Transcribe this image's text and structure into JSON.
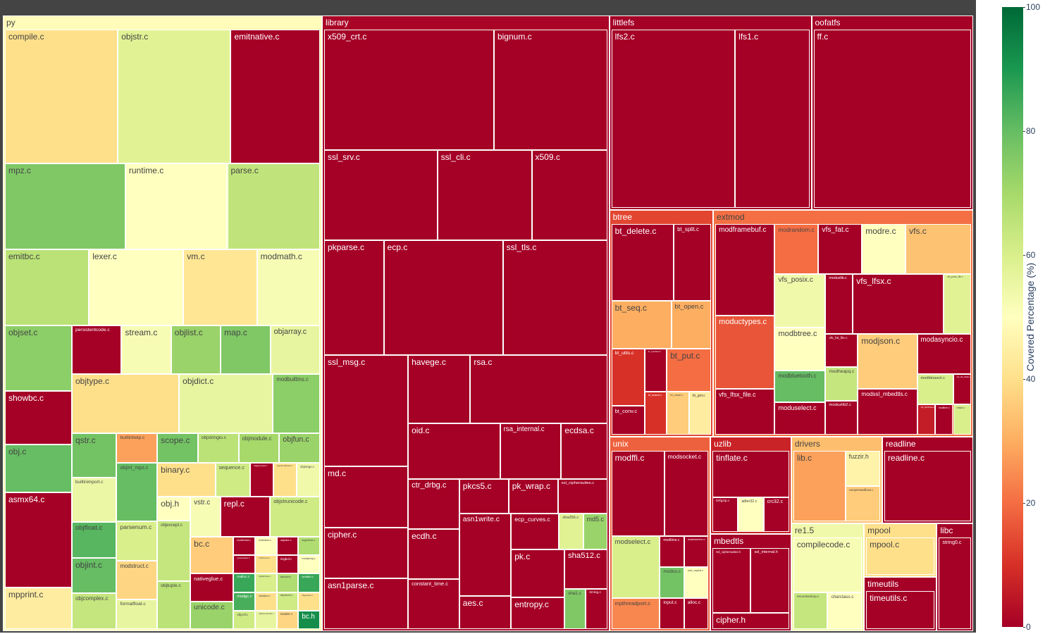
{
  "chart_data": {
    "type": "treemap",
    "colorbar": {
      "title": "Covered Percentage (%)",
      "range": [
        0,
        100
      ],
      "ticks": [
        0,
        20,
        40,
        60,
        80,
        100
      ],
      "colorscale": [
        "#a50026",
        "#d73027",
        "#f46d43",
        "#fdae61",
        "#fee08b",
        "#ffffbf",
        "#d9ef8b",
        "#a6d96a",
        "#66bd63",
        "#1a9850",
        "#006837"
      ]
    },
    "groups": [
      {
        "name": "py",
        "value": 50,
        "files": [
          {
            "name": "compile.c",
            "value": 38,
            "cov": 40
          },
          {
            "name": "objstr.c",
            "value": 38,
            "cov": 58
          },
          {
            "name": "emitnative.c",
            "value": 30,
            "cov": 0
          },
          {
            "name": "mpz.c",
            "value": 26,
            "cov": 76
          },
          {
            "name": "runtime.c",
            "value": 22,
            "cov": 50
          },
          {
            "name": "parse.c",
            "value": 20,
            "cov": 65
          },
          {
            "name": "emitbc.c",
            "value": 16,
            "cov": 66
          },
          {
            "name": "lexer.c",
            "value": 18,
            "cov": 50
          },
          {
            "name": "vm.c",
            "value": 14,
            "cov": 42
          },
          {
            "name": "modmath.c",
            "value": 12,
            "cov": 52
          },
          {
            "name": "objset.c",
            "value": 11,
            "cov": 74
          },
          {
            "name": "showbc.c",
            "value": 9,
            "cov": 0
          },
          {
            "name": "obj.c",
            "value": 8,
            "cov": 80
          },
          {
            "name": "asmx64.c",
            "value": 16,
            "cov": 0
          },
          {
            "name": "mpprint.c",
            "value": 7,
            "cov": 44
          },
          {
            "name": "persistentcode.c",
            "value": 6,
            "cov": 0
          },
          {
            "name": "stream.c",
            "value": 6,
            "cov": 52
          },
          {
            "name": "objlist.c",
            "value": 6,
            "cov": 72
          },
          {
            "name": "map.c",
            "value": 6,
            "cov": 76
          },
          {
            "name": "objarray.c",
            "value": 6,
            "cov": 56
          },
          {
            "name": "objtype.c",
            "value": 16,
            "cov": 40
          },
          {
            "name": "objdict.c",
            "value": 14,
            "cov": 56
          },
          {
            "name": "modbuiltins.c",
            "value": 7,
            "cov": 74
          },
          {
            "name": "qstr.c",
            "value": 5,
            "cov": 78
          },
          {
            "name": "builtinimport.c",
            "value": 5,
            "cov": 55
          },
          {
            "name": "objfloat.c",
            "value": 4,
            "cov": 82
          },
          {
            "name": "objint.c",
            "value": 4,
            "cov": 80
          },
          {
            "name": "objcomplex.c",
            "value": 4,
            "cov": 64
          },
          {
            "name": "builtinhelp.c",
            "value": 3,
            "cov": 28
          },
          {
            "name": "objint_mpz.c",
            "value": 6,
            "cov": 80
          },
          {
            "name": "parsenum.c",
            "value": 4,
            "cov": 60
          },
          {
            "name": "modstruct.c",
            "value": 4,
            "cov": 38
          },
          {
            "name": "formatfloat.c",
            "value": 3,
            "cov": 56
          },
          {
            "name": "scope.c",
            "value": 3,
            "cov": 78
          },
          {
            "name": "objstringio.c",
            "value": 3,
            "cov": 66
          },
          {
            "name": "objmodule.c",
            "value": 3,
            "cov": 70
          },
          {
            "name": "objfun.c",
            "value": 3,
            "cov": 72
          },
          {
            "name": "binary.c",
            "value": 5,
            "cov": 40
          },
          {
            "name": "sequence.c",
            "value": 3,
            "cov": 62
          },
          {
            "name": "objgenerator.c",
            "value": 2,
            "cov": 0
          },
          {
            "name": "objnamedtuple.c",
            "value": 2,
            "cov": 40
          },
          {
            "name": "objrange.c",
            "value": 2,
            "cov": 54
          },
          {
            "name": "obj.h",
            "value": 2,
            "cov": 50
          },
          {
            "name": "objexcept.c",
            "value": 5,
            "cov": 64
          },
          {
            "name": "objtuple.c",
            "value": 4,
            "cov": 66
          },
          {
            "name": "vstr.c",
            "value": 3,
            "cov": 52
          },
          {
            "name": "repl.c",
            "value": 5,
            "cov": 0
          },
          {
            "name": "objstrunicode.c",
            "value": 5,
            "cov": 62
          },
          {
            "name": "bc.c",
            "value": 4,
            "cov": 36
          },
          {
            "name": "nativeglue.c",
            "value": 3,
            "cov": 0
          },
          {
            "name": "unicode.c",
            "value": 3,
            "cov": 72
          },
          {
            "name": "modthread.c",
            "value": 1,
            "cov": 0
          },
          {
            "name": "scheduler.c",
            "value": 1,
            "cov": 50
          },
          {
            "name": "objslice.c",
            "value": 1,
            "cov": 0
          },
          {
            "name": "argcheck.c",
            "value": 1,
            "cov": 68
          },
          {
            "name": "parsehelper.c",
            "value": 1,
            "cov": 0
          },
          {
            "name": "malloc.c",
            "value": 1,
            "cov": 86
          },
          {
            "name": "modgc.c",
            "value": 1,
            "cov": 84
          },
          {
            "name": "objcell.c",
            "value": 1,
            "cov": 62
          },
          {
            "name": "builtinevex.c",
            "value": 1,
            "cov": 40
          },
          {
            "name": "ringbuf.c",
            "value": 1,
            "cov": 0
          },
          {
            "name": "modarray.c",
            "value": 1,
            "cov": 50
          },
          {
            "name": "objattrtuple.c",
            "value": 1,
            "cov": 60
          },
          {
            "name": "objobject.c",
            "value": 1,
            "cov": 40
          },
          {
            "name": "objboundmeth.c",
            "value": 1,
            "cov": 56
          },
          {
            "name": "stackctrl.c",
            "value": 1,
            "cov": 68
          },
          {
            "name": "smallint.c",
            "value": 1,
            "cov": 86
          },
          {
            "name": "objclosure.c",
            "value": 1,
            "cov": 62
          },
          {
            "name": "reader.c",
            "value": 1,
            "cov": 38
          },
          {
            "name": "objpolyiter.c",
            "value": 1,
            "cov": 40
          },
          {
            "name": "bc.h",
            "value": 1,
            "cov": 92
          }
        ]
      },
      {
        "name": "library",
        "value": 45,
        "files": [
          {
            "name": "x509_crt.c",
            "value": 24,
            "cov": 0
          },
          {
            "name": "bignum.c",
            "value": 16,
            "cov": 0
          },
          {
            "name": "ssl_srv.c",
            "value": 12,
            "cov": 0
          },
          {
            "name": "ssl_cli.c",
            "value": 10,
            "cov": 0
          },
          {
            "name": "x509.c",
            "value": 8,
            "cov": 0
          },
          {
            "name": "pkparse.c",
            "value": 8,
            "cov": 0
          },
          {
            "name": "ecp.c",
            "value": 16,
            "cov": 0
          },
          {
            "name": "ssl_tls.c",
            "value": 14,
            "cov": 0
          },
          {
            "name": "ssl_msg.c",
            "value": 11,
            "cov": 0
          },
          {
            "name": "md.c",
            "value": 6,
            "cov": 0
          },
          {
            "name": "cipher.c",
            "value": 5,
            "cov": 0
          },
          {
            "name": "asn1parse.c",
            "value": 5,
            "cov": 0
          },
          {
            "name": "havege.c",
            "value": 5,
            "cov": 0
          },
          {
            "name": "rsa.c",
            "value": 11,
            "cov": 0
          },
          {
            "name": "oid.c",
            "value": 6,
            "cov": 0
          },
          {
            "name": "rsa_internal.c",
            "value": 4,
            "cov": 0
          },
          {
            "name": "ecdsa.c",
            "value": 3,
            "cov": 0
          },
          {
            "name": "ctr_drbg.c",
            "value": 3,
            "cov": 0
          },
          {
            "name": "ecdh.c",
            "value": 3,
            "cov": 0
          },
          {
            "name": "constant_time.c",
            "value": 3,
            "cov": 0
          },
          {
            "name": "pkcs5.c",
            "value": 2,
            "cov": 0
          },
          {
            "name": "pk_wrap.c",
            "value": 2,
            "cov": 0
          },
          {
            "name": "ssl_ciphersuites.c",
            "value": 2,
            "cov": 0
          },
          {
            "name": "asn1write.c",
            "value": 5,
            "cov": 0
          },
          {
            "name": "aes.c",
            "value": 2,
            "cov": 0
          },
          {
            "name": "ecp_curves.c",
            "value": 2,
            "cov": 0
          },
          {
            "name": "sha256.c",
            "value": 1,
            "cov": 58
          },
          {
            "name": "md5.c",
            "value": 1,
            "cov": 72
          },
          {
            "name": "pk.c",
            "value": 3,
            "cov": 0
          },
          {
            "name": "entropy.c",
            "value": 2,
            "cov": 0
          },
          {
            "name": "sha512.c",
            "value": 2,
            "cov": 0
          },
          {
            "name": "sha1.c",
            "value": 1,
            "cov": 76
          },
          {
            "name": "timing.c",
            "value": 1,
            "cov": 0
          }
        ]
      },
      {
        "name": "littlefs",
        "value": 10,
        "files": [
          {
            "name": "lfs2.c",
            "value": 30,
            "cov": 0
          },
          {
            "name": "lfs1.c",
            "value": 18,
            "cov": 0
          }
        ]
      },
      {
        "name": "oofatfs",
        "value": 8,
        "files": [
          {
            "name": "ff.c",
            "value": 30,
            "cov": 0
          }
        ]
      },
      {
        "name": "btree",
        "value": 6,
        "files": [
          {
            "name": "bt_delete.c",
            "value": 5,
            "cov": 0
          },
          {
            "name": "bt_split.c",
            "value": 3,
            "cov": 0
          },
          {
            "name": "bt_seq.c",
            "value": 3,
            "cov": 30
          },
          {
            "name": "bt_open.c",
            "value": 2,
            "cov": 30
          },
          {
            "name": "bt_utils.c",
            "value": 2,
            "cov": 10
          },
          {
            "name": "bt_conv.c",
            "value": 1,
            "cov": 0
          },
          {
            "name": "bt_overflow.c",
            "value": 1,
            "cov": 0
          },
          {
            "name": "bt_put.c",
            "value": 2,
            "cov": 20
          },
          {
            "name": "bt_search.c",
            "value": 1,
            "cov": 10
          },
          {
            "name": "bt_close.c",
            "value": 1,
            "cov": 36
          },
          {
            "name": "bt_get.c",
            "value": 1,
            "cov": 44
          }
        ]
      },
      {
        "name": "extmod",
        "value": 15,
        "files": [
          {
            "name": "modframebuf.c",
            "value": 10,
            "cov": 0
          },
          {
            "name": "moductypes.c",
            "value": 8,
            "cov": 16
          },
          {
            "name": "vfs_lfsx_file.c",
            "value": 5,
            "cov": 0
          },
          {
            "name": "modrandom.c",
            "value": 4,
            "cov": 20
          },
          {
            "name": "vfs_fat.c",
            "value": 4,
            "cov": 0
          },
          {
            "name": "modre.c",
            "value": 4,
            "cov": 50
          },
          {
            "name": "vfs.c",
            "value": 6,
            "cov": 34
          },
          {
            "name": "vfs_posix.c",
            "value": 5,
            "cov": 54
          },
          {
            "name": "modbtree.c",
            "value": 4,
            "cov": 50
          },
          {
            "name": "modbluetooth.c",
            "value": 3,
            "cov": 80
          },
          {
            "name": "moduselect.c",
            "value": 3,
            "cov": 0
          },
          {
            "name": "moduzlib.c",
            "value": 3,
            "cov": 0
          },
          {
            "name": "vfs_lfsx.c",
            "value": 10,
            "cov": 0
          },
          {
            "name": "vfs_posix_file.c",
            "value": 3,
            "cov": 58
          },
          {
            "name": "vfs_fat_file.c",
            "value": 2,
            "cov": 0
          },
          {
            "name": "modheapq.c",
            "value": 2,
            "cov": 64
          },
          {
            "name": "moduzlib2.c",
            "value": 2,
            "cov": 0
          },
          {
            "name": "modjson.c",
            "value": 6,
            "cov": 36
          },
          {
            "name": "modssl_mbedtls.c",
            "value": 5,
            "cov": 0
          },
          {
            "name": "modasyncio.c",
            "value": 4,
            "cov": 0
          },
          {
            "name": "modbinascii.c",
            "value": 2,
            "cov": 60
          },
          {
            "name": "vfs_fat_diskio.c",
            "value": 1,
            "cov": 0
          },
          {
            "name": "vfs_blockdev.c",
            "value": 1,
            "cov": 6
          },
          {
            "name": "modtime.c",
            "value": 1,
            "cov": 0
          },
          {
            "name": "virtpin.c",
            "value": 1,
            "cov": 60
          }
        ]
      },
      {
        "name": "unix",
        "value": 5,
        "files": [
          {
            "name": "modffi.c",
            "value": 6,
            "cov": 0
          },
          {
            "name": "modsocket.c",
            "value": 5,
            "cov": 0
          },
          {
            "name": "modselect.c",
            "value": 4,
            "cov": 60
          },
          {
            "name": "mpthreadport.c",
            "value": 2,
            "cov": 24
          },
          {
            "name": "modtime.c",
            "value": 1,
            "cov": 0
          },
          {
            "name": "modmachine.c",
            "value": 1,
            "cov": 0
          },
          {
            "name": "modos.c",
            "value": 1,
            "cov": 78
          },
          {
            "name": "unix_mphal.c",
            "value": 1,
            "cov": 50
          },
          {
            "name": "input.c",
            "value": 1,
            "cov": 0
          },
          {
            "name": "alloc.c",
            "value": 1,
            "cov": 0
          }
        ]
      },
      {
        "name": "uzlib",
        "value": 2,
        "files": [
          {
            "name": "tinflate.c",
            "value": 4,
            "cov": 0
          },
          {
            "name": "tinfgzip.c",
            "value": 1,
            "cov": 0
          },
          {
            "name": "adler32.c",
            "value": 1,
            "cov": 50
          },
          {
            "name": "crc32.c",
            "value": 1,
            "cov": 0
          }
        ]
      },
      {
        "name": "mbedtls",
        "value": 2,
        "files": [
          {
            "name": "ssl_ciphersuites.h",
            "value": 2,
            "cov": 0
          },
          {
            "name": "ssl_internal.h",
            "value": 2,
            "cov": 0
          },
          {
            "name": "cipher.h",
            "value": 1,
            "cov": 0
          }
        ]
      },
      {
        "name": "drivers",
        "value": 2,
        "files": [
          {
            "name": "lib.c",
            "value": 3,
            "cov": 28
          },
          {
            "name": "fuzzir.h",
            "value": 1,
            "cov": 46
          },
          {
            "name": "compressedlines.c",
            "value": 1,
            "cov": 36
          }
        ]
      },
      {
        "name": "readline",
        "value": 2,
        "files": [
          {
            "name": "readline.c",
            "value": 4,
            "cov": 0
          }
        ]
      },
      {
        "name": "re1.5",
        "value": 2,
        "files": [
          {
            "name": "compilecode.c",
            "value": 3,
            "cov": 52
          },
          {
            "name": "recursiveloop.c",
            "value": 1,
            "cov": 64
          },
          {
            "name": "charclass.c",
            "value": 1,
            "cov": 50
          }
        ]
      },
      {
        "name": "mpool",
        "value": 1,
        "files": [
          {
            "name": "mpool.c",
            "value": 2,
            "cov": 40
          }
        ]
      },
      {
        "name": "timeutils",
        "value": 1,
        "files": [
          {
            "name": "timeutils.c",
            "value": 1,
            "cov": 0
          }
        ]
      },
      {
        "name": "libc",
        "value": 1,
        "files": [
          {
            "name": "string0.c",
            "value": 1,
            "cov": 0
          }
        ]
      }
    ]
  }
}
